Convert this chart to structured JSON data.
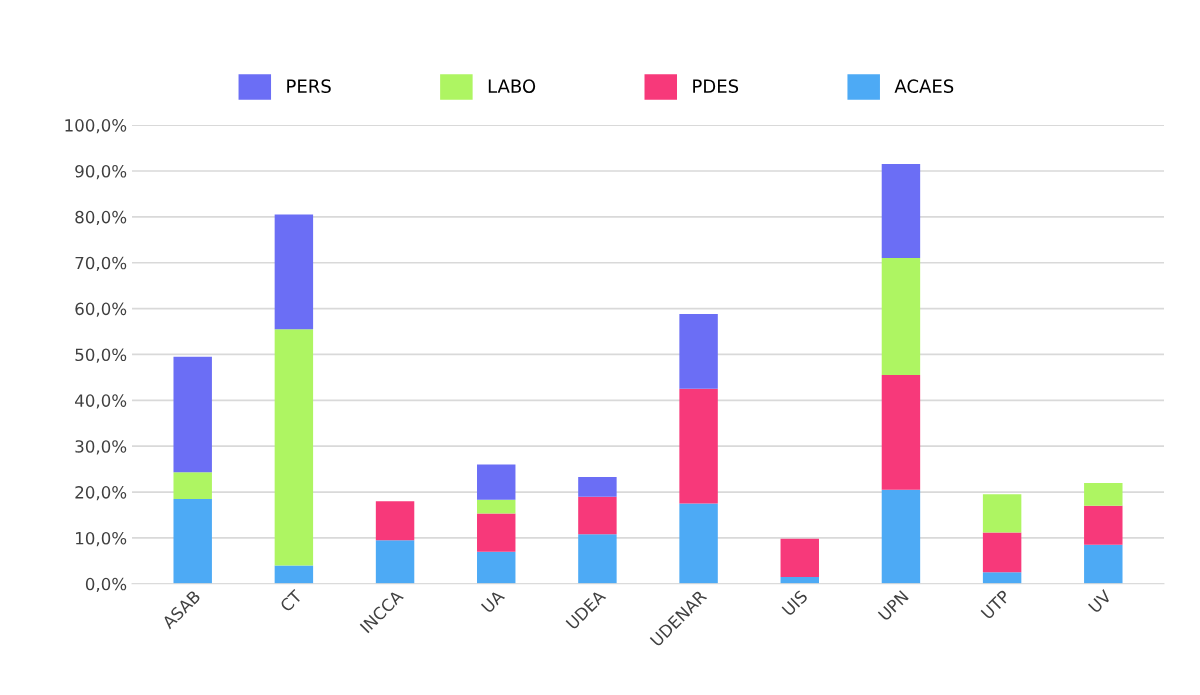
{
  "chart_data": {
    "type": "bar",
    "stacked": true,
    "categories": [
      "ASAB",
      "CT",
      "INCCA",
      "UA",
      "UDEA",
      "UDENAR",
      "UIS",
      "UPN",
      "UTP",
      "UV"
    ],
    "series": [
      {
        "name": "ACAES",
        "color": "#4daaf5",
        "values": [
          18.5,
          4,
          9.5,
          7,
          10.8,
          17.5,
          1.5,
          20.5,
          2.5,
          8.5
        ]
      },
      {
        "name": "PDES",
        "color": "#f7397a",
        "values": [
          0,
          0,
          8.5,
          8.3,
          8.2,
          25,
          8.3,
          25,
          8.7,
          8.5
        ]
      },
      {
        "name": "LABO",
        "color": "#aef562",
        "values": [
          5.8,
          51.5,
          0,
          3,
          0,
          0,
          0,
          25.5,
          8.3,
          5
        ]
      },
      {
        "name": "PERS",
        "color": "#6b6ef5",
        "values": [
          25.2,
          25,
          0,
          7.7,
          4.3,
          16.3,
          0,
          20.5,
          0,
          0
        ]
      }
    ],
    "ylim": [
      0,
      100
    ],
    "yticks": [
      {
        "value": 0,
        "label": "0,0%"
      },
      {
        "value": 10,
        "label": "10,0%"
      },
      {
        "value": 20,
        "label": "20,0%"
      },
      {
        "value": 30,
        "label": "30,0%"
      },
      {
        "value": 40,
        "label": "40,0%"
      },
      {
        "value": 50,
        "label": "50,0%"
      },
      {
        "value": 60,
        "label": "60,0%"
      },
      {
        "value": 70,
        "label": "70,0%"
      },
      {
        "value": 80,
        "label": "80,0%"
      },
      {
        "value": 90,
        "label": "90,0%"
      },
      {
        "value": 100,
        "label": "100,0%"
      }
    ],
    "grid": "y",
    "legend": "top"
  }
}
